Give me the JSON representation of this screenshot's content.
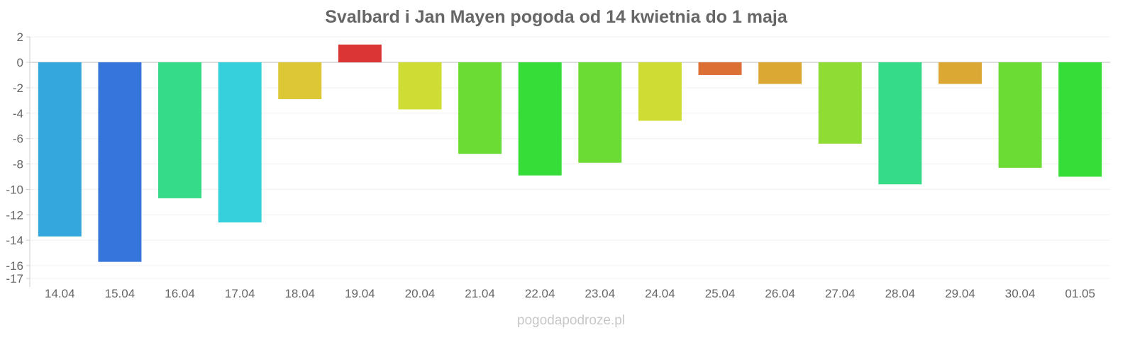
{
  "chart_data": {
    "type": "bar",
    "title": "Svalbard i Jan Mayen pogoda od 14 kwietnia do 1 maja",
    "xlabel": "",
    "ylabel": "",
    "ylim": [
      -17,
      2
    ],
    "yticks": [
      2,
      0,
      -2,
      -4,
      -6,
      -8,
      -10,
      -12,
      -14,
      -16,
      -17
    ],
    "grid": true,
    "categories": [
      "14.04",
      "15.04",
      "16.04",
      "17.04",
      "18.04",
      "19.04",
      "20.04",
      "21.04",
      "22.04",
      "23.04",
      "24.04",
      "25.04",
      "26.04",
      "27.04",
      "28.04",
      "29.04",
      "30.04",
      "01.05"
    ],
    "values": [
      -13.7,
      -15.7,
      -10.7,
      -12.6,
      -2.9,
      1.4,
      -3.7,
      -7.2,
      -8.9,
      -7.9,
      -4.6,
      -1.0,
      -1.7,
      -6.4,
      -9.6,
      -1.7,
      -8.3,
      -9.0
    ],
    "colors": [
      "#34a8dc",
      "#3575dc",
      "#36db88",
      "#36cfdc",
      "#dcc834",
      "#dc3535",
      "#cfdc34",
      "#6adc34",
      "#36dc38",
      "#6adc34",
      "#cfdc34",
      "#dc6f34",
      "#dca834",
      "#8edc34",
      "#36db88",
      "#dca834",
      "#6adc34",
      "#36dc38"
    ]
  },
  "watermark": "pogodapodroze.pl"
}
